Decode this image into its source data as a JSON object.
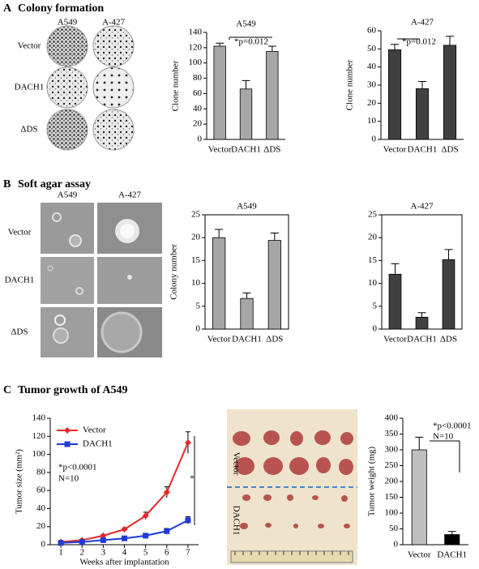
{
  "chart_data": [
    {
      "type": "bar",
      "title": "A549",
      "y_label": "Clone number",
      "categories": [
        "Vector",
        "DACH1",
        "ΔDS"
      ],
      "values": [
        122,
        66,
        115
      ],
      "errors": [
        4,
        11,
        7
      ],
      "color": "#a6a6a6",
      "ylim": [
        0,
        140
      ],
      "yticks": [
        0,
        20,
        40,
        60,
        80,
        100,
        120,
        140
      ],
      "annotations": [
        "*p=0.012"
      ]
    },
    {
      "type": "bar",
      "title": "A-427",
      "y_label": "Clone number",
      "categories": [
        "Vector",
        "DACH1",
        "ΔDS"
      ],
      "values": [
        49.5,
        28,
        52
      ],
      "errors": [
        3,
        4,
        5
      ],
      "color": "#404040",
      "ylim": [
        0,
        60
      ],
      "yticks": [
        0,
        10,
        20,
        30,
        40,
        50,
        60
      ],
      "annotations": [
        "*p=0.012"
      ]
    },
    {
      "type": "bar",
      "title": "A549",
      "y_label": "Colony number",
      "categories": [
        "Vector",
        "DACH1",
        "ΔDS"
      ],
      "values": [
        20,
        6.7,
        19.4
      ],
      "errors": [
        1.8,
        1.2,
        1.6
      ],
      "color": "#a6a6a6",
      "ylim": [
        0,
        25
      ],
      "yticks": [
        0,
        5,
        10,
        15,
        20,
        25
      ],
      "frame": true
    },
    {
      "type": "bar",
      "title": "A-427",
      "categories": [
        "Vector",
        "DACH1",
        "ΔDS"
      ],
      "values": [
        12,
        2.6,
        15.2
      ],
      "errors": [
        2.3,
        1,
        2.2
      ],
      "color": "#404040",
      "ylim": [
        0,
        25
      ],
      "yticks": [
        0,
        5,
        10,
        15,
        20,
        25
      ],
      "frame": true
    },
    {
      "type": "line",
      "y_label": "Tumor size (mm²)",
      "x_label": "Weeks after implantation",
      "x": [
        1,
        2,
        3,
        4,
        5,
        6,
        7
      ],
      "xlim": [
        0.5,
        7.5
      ],
      "xticks": [
        1,
        2,
        3,
        4,
        5,
        6,
        7
      ],
      "ylim": [
        0,
        140
      ],
      "yticks": [
        0,
        20,
        40,
        60,
        80,
        100,
        120,
        140
      ],
      "legend": "upper-left",
      "series": [
        {
          "name": "Vector",
          "color": "#e8262a",
          "marker": "diamond",
          "values": [
            3,
            5,
            10,
            17,
            32,
            58,
            113
          ],
          "errors": [
            1,
            1,
            1,
            1.5,
            4,
            6,
            12
          ]
        },
        {
          "name": "DACH1",
          "color": "#1f3ad6",
          "marker": "square",
          "values": [
            2,
            3,
            5,
            7,
            10,
            15,
            27
          ],
          "errors": [
            0.5,
            0.5,
            1,
            1,
            2,
            3,
            4
          ]
        }
      ],
      "annotations": [
        "*p<0.0001",
        "N=10",
        "*"
      ]
    },
    {
      "type": "bar",
      "y_label": "Tumor  weight  (mg)",
      "categories": [
        "Vector",
        "DACH1"
      ],
      "values": [
        300,
        32
      ],
      "errors": [
        40,
        10
      ],
      "colors": [
        "#bfbfbf",
        "#000000"
      ],
      "ylim": [
        0,
        400
      ],
      "yticks": [
        0,
        50,
        100,
        150,
        200,
        250,
        300,
        350,
        400
      ],
      "annotations": [
        "*p<0.0001",
        "N=10"
      ]
    }
  ],
  "panel_a": {
    "letter": "A",
    "title": "Colony formation",
    "columns": [
      "A549",
      "A-427"
    ],
    "rows": [
      "Vector",
      "DACH1",
      "ΔDS"
    ]
  },
  "panel_b": {
    "letter": "B",
    "title": "Soft agar assay",
    "columns": [
      "A549",
      "A-427"
    ],
    "rows": [
      "Vector",
      "DACH1",
      "ΔDS"
    ]
  },
  "panel_c": {
    "letter": "C",
    "title": "Tumor growth  of A549",
    "photo_labels": [
      "Vector",
      "DACH1"
    ]
  }
}
